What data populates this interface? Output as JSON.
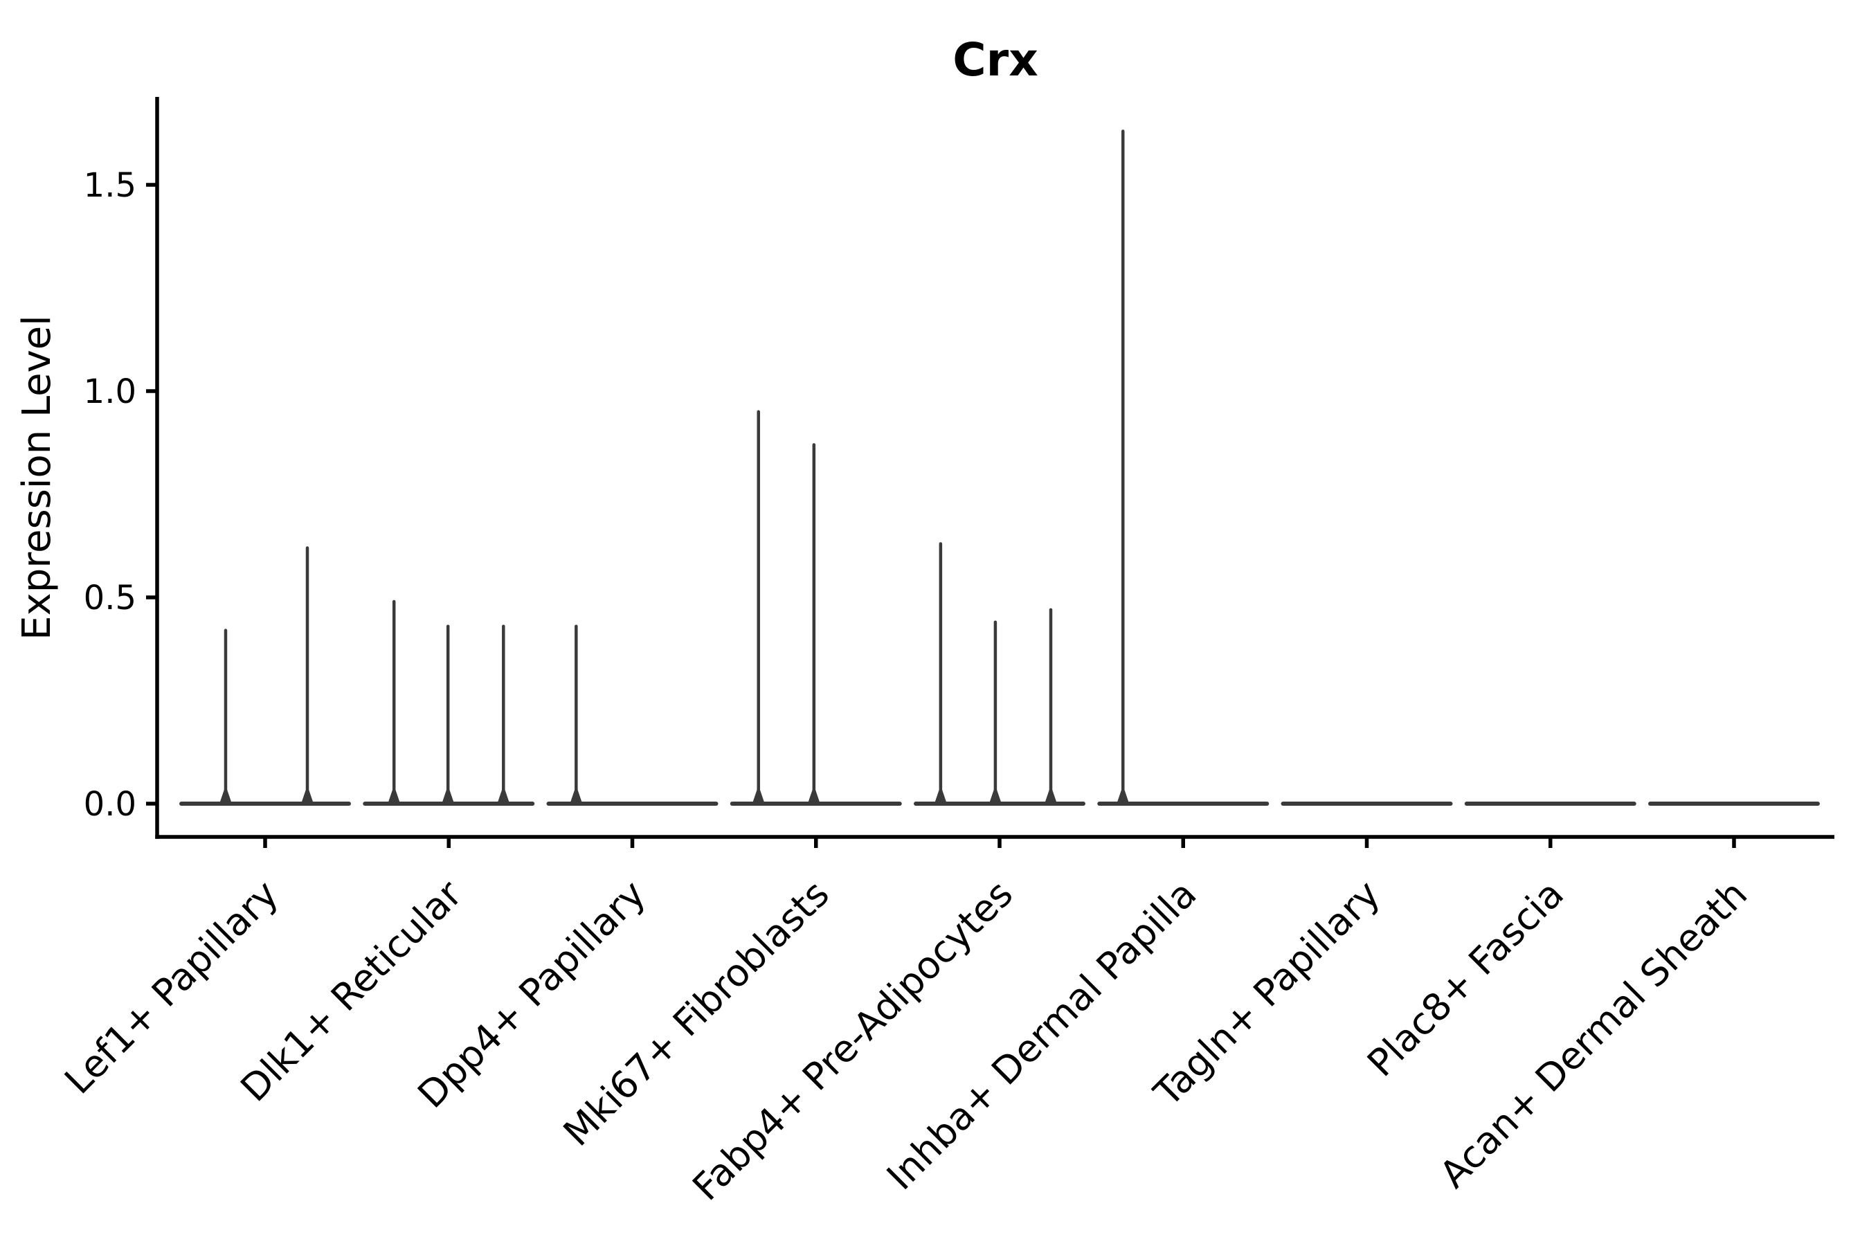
{
  "chart_data": {
    "type": "violin",
    "title": "Crx",
    "ylabel": "Expression Level",
    "xlabel": "",
    "ytick_values": [
      0.0,
      0.5,
      1.0,
      1.5
    ],
    "ytick_labels": [
      "0.0",
      "0.5",
      "1.0",
      "1.5"
    ],
    "ylim": [
      -0.08,
      1.71
    ],
    "grid": false,
    "legend": "none",
    "categories": [
      "Lef1+ Papillary",
      "Dlk1+ Reticular",
      "Dpp4+ Papillary",
      "Mki67+ Fibroblasts",
      "Fabp4+ Pre-Adipocytes",
      "Inhba+ Dermal Papilla",
      "Tagln+ Papillary",
      "Plac8+ Fascia",
      "Acan+ Dermal Sheath"
    ],
    "violins": [
      {
        "label": "Lef1+ Papillary",
        "spikes": [
          {
            "dx": -0.215,
            "value": 0.42
          },
          {
            "dx": 0.23,
            "value": 0.62
          }
        ]
      },
      {
        "label": "Dlk1+ Reticular",
        "spikes": [
          {
            "dx": -0.298,
            "value": 0.49
          },
          {
            "dx": -0.004,
            "value": 0.43
          },
          {
            "dx": 0.298,
            "value": 0.43
          }
        ]
      },
      {
        "label": "Dpp4+ Papillary",
        "spikes": [
          {
            "dx": -0.306,
            "value": 0.43
          }
        ]
      },
      {
        "label": "Mki67+ Fibroblasts",
        "spikes": [
          {
            "dx": -0.313,
            "value": 0.95
          },
          {
            "dx": -0.011,
            "value": 0.87
          }
        ]
      },
      {
        "label": "Fabp4+ Pre-Adipocytes",
        "spikes": [
          {
            "dx": -0.321,
            "value": 0.63
          },
          {
            "dx": -0.023,
            "value": 0.44
          },
          {
            "dx": 0.279,
            "value": 0.47
          }
        ]
      },
      {
        "label": "Inhba+ Dermal Papilla",
        "spikes": [
          {
            "dx": -0.328,
            "value": 1.63
          }
        ]
      },
      {
        "label": "Tagln+ Papillary",
        "spikes": []
      },
      {
        "label": "Plac8+ Fascia",
        "spikes": []
      },
      {
        "label": "Acan+ Dermal Sheath",
        "spikes": []
      }
    ],
    "colors": {
      "violin": "#3a3a3a",
      "axis": "#000000",
      "text": "#000000",
      "background": "#ffffff"
    }
  }
}
